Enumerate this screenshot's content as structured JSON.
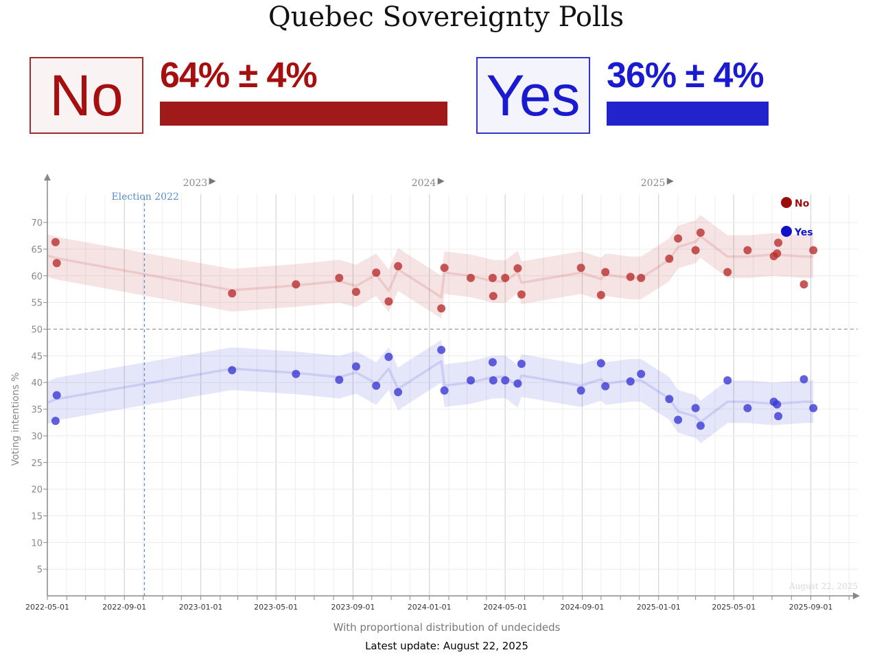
{
  "title": "Quebec Sovereignty Polls",
  "summary": {
    "no": {
      "label": "No",
      "value_text": "64% ± 4%",
      "value": 64,
      "color": "#a50f0f"
    },
    "yes": {
      "label": "Yes",
      "value_text": "36% ± 4%",
      "value": 36,
      "color": "#1a1ad0"
    }
  },
  "subtitle": "With proportional distribution of undecideds",
  "update": {
    "label": "Latest update:",
    "date": "August 22, 2025"
  },
  "chart_data": {
    "type": "scatter",
    "title": "Quebec Sovereignty Polls",
    "xlabel": "",
    "ylabel": "Voting intentions %",
    "ylim": [
      0,
      74
    ],
    "xlim": [
      "2022-05-01",
      "2025-11-15"
    ],
    "yticks": [
      5,
      10,
      15,
      20,
      25,
      30,
      35,
      40,
      45,
      50,
      55,
      60,
      65,
      70
    ],
    "xticks": [
      "2022-05-01",
      "2022-09-01",
      "2023-01-01",
      "2023-05-01",
      "2023-09-01",
      "2024-01-01",
      "2024-05-01",
      "2024-09-01",
      "2025-01-01",
      "2025-05-01",
      "2025-09-01"
    ],
    "year_markers": [
      {
        "label": "2023",
        "date": "2023-01-01"
      },
      {
        "label": "2024",
        "date": "2024-01-01"
      },
      {
        "label": "2025",
        "date": "2025-01-01"
      }
    ],
    "reference_line": {
      "y": 50
    },
    "event": {
      "label": "Election 2022",
      "date": "2022-10-03"
    },
    "watermark": "August 22, 2025",
    "legend": [
      {
        "name": "No",
        "color": "#9b0d0d"
      },
      {
        "name": "Yes",
        "color": "#1010c8"
      }
    ],
    "series": [
      {
        "name": "No",
        "color": "#b92e2e",
        "points": [
          [
            "2022-05-14",
            66.3
          ],
          [
            "2022-05-16",
            62.4
          ],
          [
            "2023-02-20",
            56.7
          ],
          [
            "2023-06-02",
            58.4
          ],
          [
            "2023-08-10",
            59.6
          ],
          [
            "2023-09-06",
            57.0
          ],
          [
            "2023-10-08",
            60.6
          ],
          [
            "2023-10-28",
            55.2
          ],
          [
            "2023-11-12",
            61.8
          ],
          [
            "2024-01-20",
            53.9
          ],
          [
            "2024-01-25",
            61.5
          ],
          [
            "2024-03-07",
            59.6
          ],
          [
            "2024-04-11",
            59.6
          ],
          [
            "2024-04-12",
            56.2
          ],
          [
            "2024-05-01",
            59.6
          ],
          [
            "2024-05-21",
            61.4
          ],
          [
            "2024-05-27",
            56.5
          ],
          [
            "2024-08-30",
            61.5
          ],
          [
            "2024-10-01",
            56.4
          ],
          [
            "2024-10-08",
            60.7
          ],
          [
            "2024-11-17",
            59.8
          ],
          [
            "2024-12-04",
            59.6
          ],
          [
            "2025-01-18",
            63.2
          ],
          [
            "2025-02-01",
            67.0
          ],
          [
            "2025-03-01",
            64.8
          ],
          [
            "2025-03-09",
            68.1
          ],
          [
            "2025-04-21",
            60.7
          ],
          [
            "2025-05-23",
            64.8
          ],
          [
            "2025-07-04",
            63.7
          ],
          [
            "2025-07-09",
            64.2
          ],
          [
            "2025-07-11",
            66.2
          ],
          [
            "2025-08-21",
            58.4
          ],
          [
            "2025-09-05",
            64.8
          ]
        ],
        "trend": [
          [
            "2022-05-01",
            63.8
          ],
          [
            "2022-05-16",
            63.3
          ],
          [
            "2023-02-20",
            57.3
          ],
          [
            "2023-06-02",
            58.2
          ],
          [
            "2023-08-10",
            59.0
          ],
          [
            "2023-09-06",
            58.1
          ],
          [
            "2023-10-08",
            60.2
          ],
          [
            "2023-10-28",
            57.2
          ],
          [
            "2023-11-12",
            61.2
          ],
          [
            "2024-01-20",
            56.0
          ],
          [
            "2024-01-25",
            60.6
          ],
          [
            "2024-03-07",
            60.0
          ],
          [
            "2024-04-11",
            59.0
          ],
          [
            "2024-05-01",
            58.9
          ],
          [
            "2024-05-21",
            60.7
          ],
          [
            "2024-05-27",
            58.7
          ],
          [
            "2024-08-30",
            60.6
          ],
          [
            "2024-10-01",
            59.4
          ],
          [
            "2024-10-08",
            60.2
          ],
          [
            "2024-11-17",
            59.6
          ],
          [
            "2024-12-04",
            59.6
          ],
          [
            "2025-01-18",
            63.0
          ],
          [
            "2025-02-01",
            65.4
          ],
          [
            "2025-03-01",
            66.4
          ],
          [
            "2025-03-09",
            67.4
          ],
          [
            "2025-04-21",
            63.6
          ],
          [
            "2025-05-23",
            63.6
          ],
          [
            "2025-07-04",
            64.0
          ],
          [
            "2025-08-21",
            63.6
          ],
          [
            "2025-09-05",
            63.6
          ]
        ]
      },
      {
        "name": "Yes",
        "color": "#3a3ad6",
        "points": [
          [
            "2022-05-14",
            32.8
          ],
          [
            "2022-05-16",
            37.6
          ],
          [
            "2023-02-20",
            42.3
          ],
          [
            "2023-06-02",
            41.6
          ],
          [
            "2023-08-10",
            40.5
          ],
          [
            "2023-09-06",
            43.0
          ],
          [
            "2023-10-08",
            39.4
          ],
          [
            "2023-10-28",
            44.8
          ],
          [
            "2023-11-12",
            38.2
          ],
          [
            "2024-01-20",
            46.1
          ],
          [
            "2024-01-25",
            38.5
          ],
          [
            "2024-03-07",
            40.4
          ],
          [
            "2024-04-11",
            43.8
          ],
          [
            "2024-04-12",
            40.4
          ],
          [
            "2024-05-01",
            40.4
          ],
          [
            "2024-05-21",
            39.8
          ],
          [
            "2024-05-27",
            43.5
          ],
          [
            "2024-08-30",
            38.5
          ],
          [
            "2024-10-01",
            43.6
          ],
          [
            "2024-10-08",
            39.3
          ],
          [
            "2024-11-17",
            40.2
          ],
          [
            "2024-12-04",
            41.6
          ],
          [
            "2025-01-18",
            36.9
          ],
          [
            "2025-02-01",
            33.0
          ],
          [
            "2025-03-01",
            35.2
          ],
          [
            "2025-03-09",
            31.9
          ],
          [
            "2025-04-21",
            40.4
          ],
          [
            "2025-05-23",
            35.2
          ],
          [
            "2025-07-04",
            36.4
          ],
          [
            "2025-07-09",
            35.9
          ],
          [
            "2025-07-11",
            33.7
          ],
          [
            "2025-08-21",
            40.6
          ],
          [
            "2025-09-05",
            35.2
          ]
        ],
        "trend": [
          [
            "2022-05-01",
            36.2
          ],
          [
            "2022-05-16",
            36.9
          ],
          [
            "2023-02-20",
            42.6
          ],
          [
            "2023-06-02",
            41.8
          ],
          [
            "2023-08-10",
            41.0
          ],
          [
            "2023-09-06",
            41.9
          ],
          [
            "2023-10-08",
            39.8
          ],
          [
            "2023-10-28",
            42.6
          ],
          [
            "2023-11-12",
            38.8
          ],
          [
            "2024-01-20",
            44.0
          ],
          [
            "2024-01-25",
            39.4
          ],
          [
            "2024-03-07",
            40.0
          ],
          [
            "2024-04-11",
            41.0
          ],
          [
            "2024-05-01",
            41.1
          ],
          [
            "2024-05-21",
            39.3
          ],
          [
            "2024-05-27",
            41.3
          ],
          [
            "2024-08-30",
            39.4
          ],
          [
            "2024-10-01",
            40.6
          ],
          [
            "2024-10-08",
            39.8
          ],
          [
            "2024-11-17",
            40.4
          ],
          [
            "2024-12-04",
            40.4
          ],
          [
            "2025-01-18",
            37.0
          ],
          [
            "2025-02-01",
            34.6
          ],
          [
            "2025-03-01",
            33.6
          ],
          [
            "2025-03-09",
            32.6
          ],
          [
            "2025-04-21",
            36.4
          ],
          [
            "2025-05-23",
            36.4
          ],
          [
            "2025-07-04",
            36.0
          ],
          [
            "2025-08-21",
            36.4
          ],
          [
            "2025-09-05",
            36.4
          ]
        ]
      }
    ]
  }
}
